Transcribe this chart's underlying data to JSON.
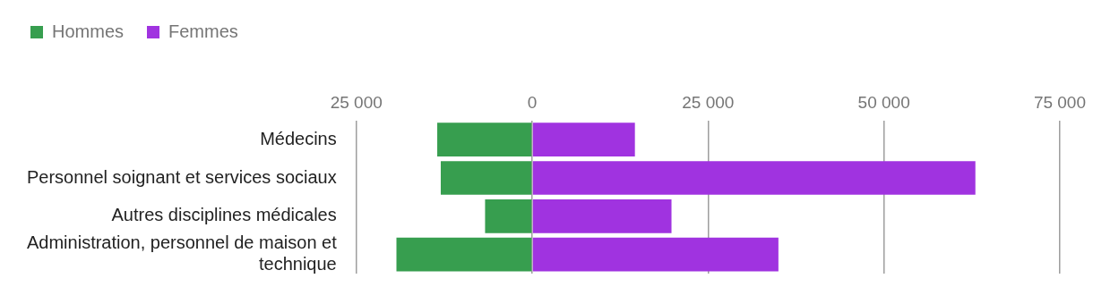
{
  "chart_data": {
    "type": "bar",
    "orientation": "horizontal",
    "stacked": true,
    "categories": [
      "Médecins",
      "Personnel soignant et services sociaux",
      "Autres disciplines médicales",
      "Administration, personnel de maison et technique"
    ],
    "series": [
      {
        "name": "Hommes",
        "color": "#379e4f",
        "values": [
          -13500,
          -13000,
          -6700,
          -19300
        ]
      },
      {
        "name": "Femmes",
        "color": "#a033e0",
        "values": [
          14600,
          63000,
          19800,
          35000
        ]
      }
    ],
    "xlim": [
      -25000,
      75000
    ],
    "xticks": [
      {
        "value": -25000,
        "label": "25 000"
      },
      0,
      {
        "value": 25000,
        "label": "25 000"
      },
      {
        "value": 50000,
        "label": "50 000"
      },
      {
        "value": 75000,
        "label": "75 000"
      }
    ],
    "grid": "x",
    "legend": "top left"
  }
}
